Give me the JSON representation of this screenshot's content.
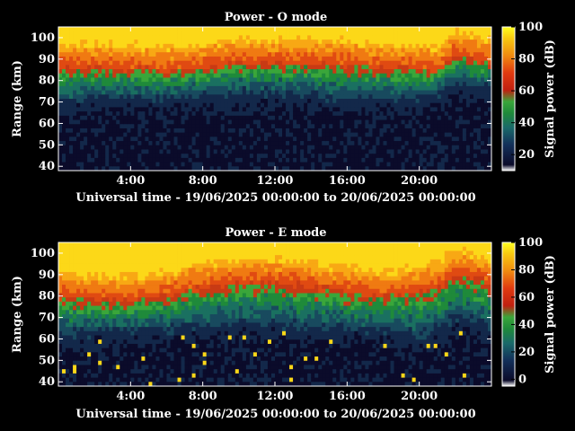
{
  "chart_data": [
    {
      "type": "heatmap",
      "title": "Power - O mode",
      "xlabel": "Universal time - 19/06/2025 00:00:00 to 20/06/2025 00:00:00",
      "ylabel": "Range (km)",
      "xlim_hours": [
        0,
        24
      ],
      "ylim": [
        38,
        105
      ],
      "x_ticks": [
        "4:00",
        "8:00",
        "12:00",
        "16:00",
        "20:00"
      ],
      "y_ticks": [
        "100",
        "90",
        "80",
        "70",
        "60",
        "50",
        "40"
      ],
      "colorbar": {
        "label": "Signal power (dB)",
        "range": [
          10,
          100
        ],
        "ticks": [
          "100",
          "80",
          "60",
          "40",
          "20"
        ]
      },
      "transition_km": {
        "hours": [
          0,
          2,
          4,
          6,
          8,
          10,
          12,
          14,
          16,
          18,
          20,
          21,
          22,
          23,
          24
        ],
        "strong_above": [
          86,
          86,
          85,
          84,
          86,
          88,
          88,
          88,
          87,
          86,
          85,
          84,
          92,
          90,
          88
        ],
        "noise_below": [
          70,
          71,
          72,
          72,
          73,
          74,
          74,
          73,
          72,
          72,
          72,
          74,
          80,
          78,
          76
        ]
      }
    },
    {
      "type": "heatmap",
      "title": "Power - E mode",
      "xlabel": "Universal time - 19/06/2025 00:00:00 to 20/06/2025 00:00:00",
      "ylabel": "Range (km)",
      "xlim_hours": [
        0,
        24
      ],
      "ylim": [
        38,
        105
      ],
      "x_ticks": [
        "4:00",
        "8:00",
        "12:00",
        "16:00",
        "20:00"
      ],
      "y_ticks": [
        "100",
        "90",
        "80",
        "70",
        "60",
        "50",
        "40"
      ],
      "colorbar": {
        "label": "Signal power (dB)",
        "range": [
          -5,
          100
        ],
        "ticks": [
          "100",
          "80",
          "60",
          "40",
          "20",
          "0"
        ]
      },
      "transition_km": {
        "hours": [
          0,
          2,
          4,
          6,
          8,
          10,
          12,
          14,
          16,
          18,
          20,
          21,
          22,
          23,
          24
        ],
        "strong_above": [
          80,
          78,
          78,
          80,
          84,
          86,
          86,
          84,
          82,
          80,
          82,
          84,
          90,
          88,
          86
        ],
        "noise_below": [
          62,
          63,
          64,
          65,
          66,
          67,
          67,
          66,
          65,
          64,
          62,
          64,
          70,
          68,
          66
        ]
      }
    }
  ]
}
